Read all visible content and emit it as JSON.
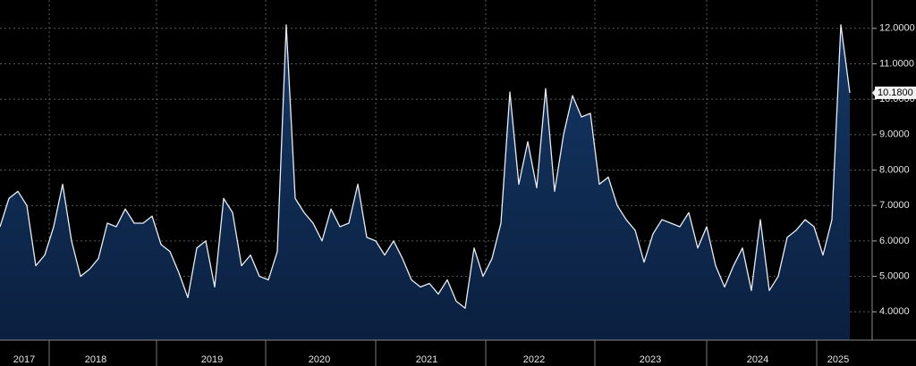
{
  "chart_data": {
    "type": "area",
    "categories": [
      null,
      null,
      null,
      "2017",
      null,
      null,
      null,
      null,
      null,
      null,
      null,
      "2018",
      null,
      null,
      null,
      null,
      null,
      null,
      null,
      null,
      null,
      null,
      null,
      null,
      "2019",
      null,
      null,
      null,
      null,
      null,
      null,
      null,
      null,
      null,
      null,
      null,
      "2020",
      null,
      null,
      null,
      null,
      null,
      null,
      null,
      null,
      null,
      null,
      null,
      "2021",
      null,
      null,
      null,
      null,
      null,
      null,
      null,
      null,
      null,
      null,
      null,
      "2022",
      null,
      null,
      null,
      null,
      null,
      null,
      null,
      null,
      null,
      null,
      null,
      null,
      "2023",
      null,
      null,
      null,
      null,
      null,
      null,
      null,
      null,
      null,
      null,
      null,
      "2024",
      null,
      null,
      null,
      null,
      null,
      null,
      null,
      null,
      "2025",
      null
    ],
    "values": [
      6.4,
      7.2,
      7.4,
      7.0,
      5.3,
      5.6,
      6.4,
      7.6,
      6.0,
      5.0,
      5.2,
      5.5,
      6.5,
      6.4,
      6.9,
      6.5,
      6.5,
      6.7,
      5.9,
      5.7,
      5.1,
      4.4,
      5.8,
      6.0,
      4.7,
      7.2,
      6.8,
      5.3,
      5.6,
      5.0,
      4.9,
      5.7,
      12.1,
      7.2,
      6.8,
      6.5,
      6.0,
      6.9,
      6.4,
      6.5,
      7.6,
      6.1,
      6.0,
      5.6,
      6.0,
      5.5,
      4.9,
      4.7,
      4.8,
      4.5,
      4.9,
      4.3,
      4.1,
      5.8,
      5.0,
      5.5,
      6.5,
      10.2,
      7.6,
      8.8,
      7.5,
      10.3,
      7.4,
      9.0,
      10.1,
      9.5,
      9.6,
      7.6,
      7.8,
      7.0,
      6.6,
      6.3,
      5.4,
      6.2,
      6.6,
      6.5,
      6.4,
      6.8,
      5.8,
      6.4,
      5.3,
      4.7,
      5.3,
      5.8,
      4.6,
      6.6,
      4.6,
      5.0,
      6.1,
      6.3,
      6.6,
      6.4,
      5.6,
      6.6,
      12.1,
      10.18
    ],
    "value_labels": [
      null,
      null,
      null,
      null,
      null,
      null,
      null,
      null,
      null,
      null,
      null,
      null,
      null,
      null,
      null,
      null,
      null,
      null,
      null,
      null,
      null,
      null,
      null,
      null,
      null,
      null,
      null,
      null,
      null,
      null,
      null,
      null,
      null,
      null,
      null,
      null,
      null,
      null,
      null,
      null,
      null,
      null,
      null,
      null,
      null,
      null,
      null,
      null,
      null,
      null,
      null,
      null,
      null,
      null,
      null,
      null,
      null,
      null,
      null,
      null,
      null,
      null,
      null,
      null,
      null,
      null,
      null,
      null,
      null,
      null,
      null,
      null,
      null,
      null,
      null,
      null,
      null,
      null,
      null,
      null,
      null,
      null,
      null,
      null,
      null,
      null,
      null,
      null,
      null,
      null,
      null,
      null,
      null,
      null,
      null,
      "10.1800"
    ],
    "line_color": "#e8edf5",
    "fill_color": "#0f2a4f",
    "ylim": [
      3.2,
      12.8
    ],
    "yticks": [
      {
        "value": 4,
        "label": "4.0000"
      },
      {
        "value": 5,
        "label": "5.0000"
      },
      {
        "value": 6,
        "label": "6.0000"
      },
      {
        "value": 7,
        "label": "7.0000"
      },
      {
        "value": 8,
        "label": "8.0000"
      },
      {
        "value": 9,
        "label": "9.0000"
      },
      {
        "value": 10,
        "label": "10.0000"
      },
      {
        "value": 11,
        "label": "11.0000"
      },
      {
        "value": 12,
        "label": "12.0000"
      }
    ],
    "grid": true
  }
}
